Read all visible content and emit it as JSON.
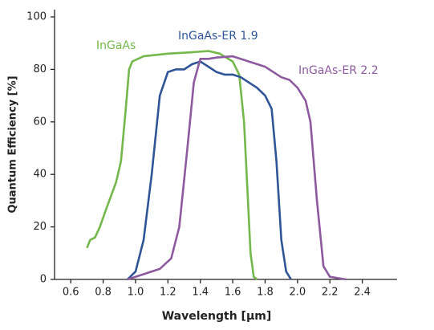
{
  "chart_data": {
    "type": "line",
    "xlabel": "Wavelength [µm]",
    "ylabel": "Quantum Efficiency [%]",
    "xlim": [
      0.5,
      2.6
    ],
    "ylim": [
      0,
      100
    ],
    "xticks": [
      0.6,
      0.8,
      {
        "value": 1.0,
        "label": "1.0"
      },
      1.2,
      1.4,
      1.6,
      1.8,
      {
        "value": 2.0,
        "label": "2.0"
      },
      2.2,
      2.4
    ],
    "yticks": [
      0,
      20,
      40,
      60,
      80,
      100
    ],
    "series": [
      {
        "name": "InGaAs",
        "color": "#74b84c",
        "x": [
          0.7,
          0.72,
          0.75,
          0.78,
          0.82,
          0.88,
          0.91,
          0.94,
          0.96,
          0.98,
          1.05,
          1.2,
          1.35,
          1.45,
          1.52,
          1.6,
          1.64,
          1.67,
          1.69,
          1.71,
          1.73,
          1.75
        ],
        "values": [
          12,
          15,
          16,
          20,
          27,
          37,
          45,
          65,
          80,
          83,
          85,
          86,
          86.5,
          87,
          86,
          83,
          78,
          60,
          35,
          10,
          1,
          0
        ]
      },
      {
        "name": "InGaAs-ER 1.9",
        "color": "#2f5597",
        "x": [
          0.95,
          1.0,
          1.05,
          1.1,
          1.15,
          1.2,
          1.25,
          1.3,
          1.35,
          1.4,
          1.45,
          1.5,
          1.55,
          1.6,
          1.65,
          1.7,
          1.75,
          1.8,
          1.84,
          1.87,
          1.9,
          1.93,
          1.96
        ],
        "values": [
          0,
          3,
          15,
          40,
          70,
          79,
          80,
          80,
          82,
          83,
          81,
          79,
          78,
          78,
          77,
          75,
          73,
          70,
          65,
          45,
          15,
          3,
          0
        ]
      },
      {
        "name": "InGaAs-ER 2.2",
        "color": "#8e5a9f",
        "x": [
          0.95,
          1.05,
          1.15,
          1.22,
          1.27,
          1.32,
          1.36,
          1.4,
          1.45,
          1.5,
          1.6,
          1.7,
          1.8,
          1.85,
          1.9,
          1.95,
          2.0,
          2.05,
          2.08,
          2.12,
          2.16,
          2.2,
          2.25,
          2.3
        ],
        "values": [
          0,
          2,
          4,
          8,
          20,
          50,
          75,
          84,
          84,
          84.5,
          85,
          83,
          81,
          79,
          77,
          76,
          73,
          68,
          60,
          30,
          5,
          1,
          0.5,
          0
        ]
      }
    ]
  }
}
